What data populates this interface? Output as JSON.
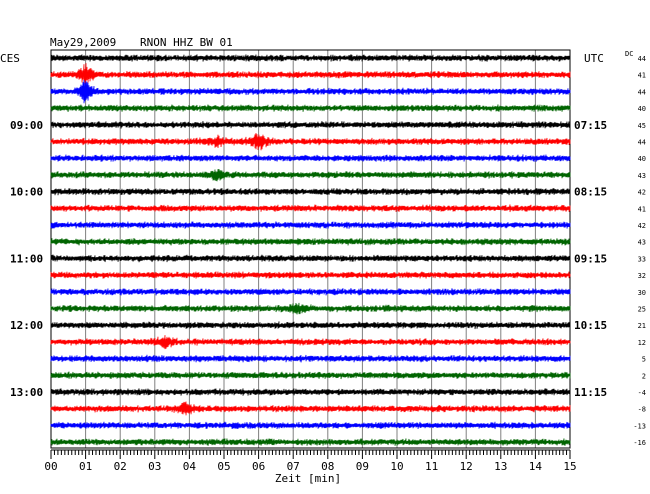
{
  "header": {
    "date": "May29,2009",
    "station": "RNON HHZ BW 01",
    "left_timezone": "CES",
    "right_timezone": "UTC",
    "dc_label": "DC"
  },
  "colors": {
    "trace_cycle": [
      "#000000",
      "#ff0000",
      "#0000ff",
      "#006400"
    ],
    "grid": "#808080",
    "frame": "#000000"
  },
  "chart_data": {
    "type": "line",
    "title": "May29,2009   RNON HHZ BW 01",
    "xlabel": "Zeit [min]",
    "xlim": [
      0,
      15
    ],
    "x_ticks": [
      "00",
      "01",
      "02",
      "03",
      "04",
      "05",
      "06",
      "07",
      "08",
      "09",
      "10",
      "11",
      "12",
      "13",
      "14",
      "15"
    ],
    "left_time_labels": [
      {
        "text": "09:00",
        "row": 4
      },
      {
        "text": "10:00",
        "row": 8
      },
      {
        "text": "11:00",
        "row": 12
      },
      {
        "text": "12:00",
        "row": 16
      },
      {
        "text": "13:00",
        "row": 20
      }
    ],
    "right_time_labels": [
      {
        "text": "07:15",
        "row": 4
      },
      {
        "text": "08:15",
        "row": 8
      },
      {
        "text": "09:15",
        "row": 12
      },
      {
        "text": "10:15",
        "row": 16
      },
      {
        "text": "11:15",
        "row": 20
      }
    ],
    "dc_offsets": [
      44,
      41,
      44,
      40,
      45,
      44,
      40,
      43,
      42,
      41,
      42,
      43,
      33,
      32,
      30,
      25,
      21,
      12,
      5,
      2,
      -4,
      -8,
      -13,
      -16
    ],
    "traces": 24,
    "events": [
      {
        "row": 1,
        "minute": 1.0,
        "amplitude": "large"
      },
      {
        "row": 2,
        "minute": 1.0,
        "amplitude": "large"
      },
      {
        "row": 5,
        "minute": 6.0,
        "amplitude": "medium"
      },
      {
        "row": 5,
        "minute": 4.8,
        "amplitude": "small"
      },
      {
        "row": 7,
        "minute": 4.8,
        "amplitude": "small"
      },
      {
        "row": 15,
        "minute": 7.1,
        "amplitude": "small"
      },
      {
        "row": 17,
        "minute": 3.3,
        "amplitude": "small"
      },
      {
        "row": 21,
        "minute": 3.9,
        "amplitude": "small"
      }
    ]
  }
}
